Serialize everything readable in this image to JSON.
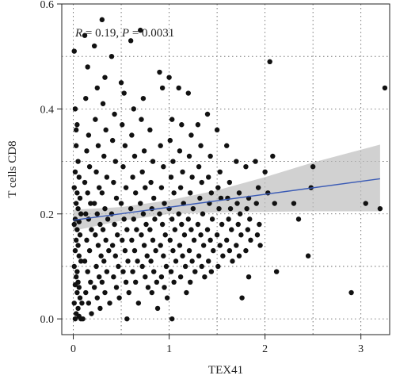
{
  "chart_data": {
    "type": "scatter",
    "title": "",
    "xlabel": "TEX41",
    "ylabel": "T cells CD8",
    "xlim": [
      -0.12,
      3.3
    ],
    "ylim": [
      -0.03,
      0.6
    ],
    "xticks": [
      0,
      1,
      2,
      3
    ],
    "yticks": [
      0.0,
      0.2,
      0.4,
      0.6
    ],
    "ytick_labels": [
      "0.0",
      "0.2",
      "0.4",
      "0.6"
    ],
    "grid": true,
    "annotation": {
      "r_symbol": "R",
      "r_value": " = 0.19, ",
      "p_symbol": "P",
      "p_value": " = 0.0031"
    },
    "fit": {
      "slope": 0.0247,
      "intercept": 0.188,
      "band": [
        {
          "x": 0.0,
          "lower": 0.168,
          "upper": 0.208
        },
        {
          "x": 0.5,
          "lower": 0.187,
          "upper": 0.213
        },
        {
          "x": 1.0,
          "lower": 0.2,
          "upper": 0.226
        },
        {
          "x": 1.5,
          "lower": 0.203,
          "upper": 0.245
        },
        {
          "x": 2.0,
          "lower": 0.204,
          "upper": 0.27
        },
        {
          "x": 2.5,
          "lower": 0.205,
          "upper": 0.298
        },
        {
          "x": 3.2,
          "lower": 0.205,
          "upper": 0.332
        }
      ]
    },
    "points": [
      [
        0.01,
        0.51
      ],
      [
        0.02,
        0.4
      ],
      [
        0.03,
        0.36
      ],
      [
        0.04,
        0.37
      ],
      [
        0.03,
        0.33
      ],
      [
        0.05,
        0.3
      ],
      [
        0.02,
        0.28
      ],
      [
        0.06,
        0.27
      ],
      [
        0.01,
        0.25
      ],
      [
        0.04,
        0.24
      ],
      [
        0.07,
        0.23
      ],
      [
        0.03,
        0.22
      ],
      [
        0.05,
        0.21
      ],
      [
        0.08,
        0.2
      ],
      [
        0.02,
        0.19
      ],
      [
        0.06,
        0.185
      ],
      [
        0.01,
        0.18
      ],
      [
        0.04,
        0.17
      ],
      [
        0.07,
        0.16
      ],
      [
        0.03,
        0.15
      ],
      [
        0.05,
        0.14
      ],
      [
        0.02,
        0.13
      ],
      [
        0.06,
        0.12
      ],
      [
        0.08,
        0.11
      ],
      [
        0.01,
        0.1
      ],
      [
        0.04,
        0.09
      ],
      [
        0.03,
        0.08
      ],
      [
        0.05,
        0.07
      ],
      [
        0.02,
        0.065
      ],
      [
        0.06,
        0.06
      ],
      [
        0.04,
        0.05
      ],
      [
        0.07,
        0.04
      ],
      [
        0.01,
        0.03
      ],
      [
        0.05,
        0.02
      ],
      [
        0.03,
        0.01
      ],
      [
        0.06,
        0.005
      ],
      [
        0.08,
        0.0
      ],
      [
        0.02,
        0.0
      ],
      [
        0.1,
        0.0
      ],
      [
        0.09,
        0.03
      ],
      [
        0.12,
        0.54
      ],
      [
        0.15,
        0.48
      ],
      [
        0.13,
        0.42
      ],
      [
        0.16,
        0.35
      ],
      [
        0.14,
        0.32
      ],
      [
        0.17,
        0.29
      ],
      [
        0.12,
        0.26
      ],
      [
        0.15,
        0.24
      ],
      [
        0.18,
        0.22
      ],
      [
        0.13,
        0.2
      ],
      [
        0.16,
        0.19
      ],
      [
        0.19,
        0.17
      ],
      [
        0.14,
        0.15
      ],
      [
        0.17,
        0.13
      ],
      [
        0.12,
        0.11
      ],
      [
        0.15,
        0.09
      ],
      [
        0.18,
        0.07
      ],
      [
        0.13,
        0.05
      ],
      [
        0.16,
        0.03
      ],
      [
        0.19,
        0.01
      ],
      [
        0.22,
        0.52
      ],
      [
        0.25,
        0.44
      ],
      [
        0.23,
        0.38
      ],
      [
        0.26,
        0.33
      ],
      [
        0.24,
        0.28
      ],
      [
        0.27,
        0.25
      ],
      [
        0.22,
        0.22
      ],
      [
        0.25,
        0.2
      ],
      [
        0.28,
        0.18
      ],
      [
        0.23,
        0.16
      ],
      [
        0.26,
        0.14
      ],
      [
        0.29,
        0.12
      ],
      [
        0.24,
        0.1
      ],
      [
        0.27,
        0.08
      ],
      [
        0.22,
        0.06
      ],
      [
        0.25,
        0.04
      ],
      [
        0.28,
        0.02
      ],
      [
        0.3,
        0.57
      ],
      [
        0.33,
        0.46
      ],
      [
        0.31,
        0.41
      ],
      [
        0.34,
        0.36
      ],
      [
        0.32,
        0.31
      ],
      [
        0.35,
        0.27
      ],
      [
        0.3,
        0.24
      ],
      [
        0.33,
        0.21
      ],
      [
        0.36,
        0.19
      ],
      [
        0.31,
        0.17
      ],
      [
        0.34,
        0.15
      ],
      [
        0.37,
        0.13
      ],
      [
        0.32,
        0.11
      ],
      [
        0.35,
        0.09
      ],
      [
        0.3,
        0.07
      ],
      [
        0.33,
        0.05
      ],
      [
        0.38,
        0.03
      ],
      [
        0.4,
        0.5
      ],
      [
        0.43,
        0.39
      ],
      [
        0.41,
        0.34
      ],
      [
        0.44,
        0.3
      ],
      [
        0.42,
        0.26
      ],
      [
        0.45,
        0.23
      ],
      [
        0.4,
        0.2
      ],
      [
        0.43,
        0.18
      ],
      [
        0.46,
        0.16
      ],
      [
        0.41,
        0.14
      ],
      [
        0.44,
        0.12
      ],
      [
        0.47,
        0.1
      ],
      [
        0.42,
        0.08
      ],
      [
        0.45,
        0.06
      ],
      [
        0.48,
        0.04
      ],
      [
        0.5,
        0.45
      ],
      [
        0.53,
        0.43
      ],
      [
        0.51,
        0.37
      ],
      [
        0.54,
        0.33
      ],
      [
        0.52,
        0.29
      ],
      [
        0.55,
        0.25
      ],
      [
        0.5,
        0.22
      ],
      [
        0.53,
        0.19
      ],
      [
        0.56,
        0.17
      ],
      [
        0.51,
        0.15
      ],
      [
        0.54,
        0.13
      ],
      [
        0.57,
        0.11
      ],
      [
        0.52,
        0.09
      ],
      [
        0.55,
        0.07
      ],
      [
        0.58,
        0.05
      ],
      [
        0.56,
        0.0
      ],
      [
        0.6,
        0.53
      ],
      [
        0.63,
        0.4
      ],
      [
        0.61,
        0.35
      ],
      [
        0.64,
        0.31
      ],
      [
        0.62,
        0.27
      ],
      [
        0.65,
        0.24
      ],
      [
        0.6,
        0.21
      ],
      [
        0.63,
        0.19
      ],
      [
        0.66,
        0.17
      ],
      [
        0.61,
        0.15
      ],
      [
        0.64,
        0.13
      ],
      [
        0.67,
        0.11
      ],
      [
        0.62,
        0.09
      ],
      [
        0.65,
        0.07
      ],
      [
        0.68,
        0.03
      ],
      [
        0.7,
        0.55
      ],
      [
        0.73,
        0.42
      ],
      [
        0.71,
        0.38
      ],
      [
        0.74,
        0.32
      ],
      [
        0.72,
        0.28
      ],
      [
        0.75,
        0.25
      ],
      [
        0.7,
        0.22
      ],
      [
        0.73,
        0.2
      ],
      [
        0.76,
        0.18
      ],
      [
        0.71,
        0.16
      ],
      [
        0.74,
        0.14
      ],
      [
        0.77,
        0.12
      ],
      [
        0.72,
        0.1
      ],
      [
        0.75,
        0.08
      ],
      [
        0.78,
        0.06
      ],
      [
        0.8,
        0.36
      ],
      [
        0.83,
        0.3
      ],
      [
        0.81,
        0.26
      ],
      [
        0.84,
        0.23
      ],
      [
        0.82,
        0.21
      ],
      [
        0.85,
        0.19
      ],
      [
        0.8,
        0.17
      ],
      [
        0.83,
        0.15
      ],
      [
        0.86,
        0.13
      ],
      [
        0.81,
        0.11
      ],
      [
        0.84,
        0.09
      ],
      [
        0.87,
        0.07
      ],
      [
        0.82,
        0.05
      ],
      [
        0.88,
        0.02
      ],
      [
        0.9,
        0.47
      ],
      [
        0.93,
        0.44
      ],
      [
        0.91,
        0.33
      ],
      [
        0.94,
        0.29
      ],
      [
        0.92,
        0.25
      ],
      [
        0.95,
        0.22
      ],
      [
        0.9,
        0.2
      ],
      [
        0.93,
        0.18
      ],
      [
        0.96,
        0.16
      ],
      [
        0.91,
        0.14
      ],
      [
        0.94,
        0.12
      ],
      [
        0.97,
        0.1
      ],
      [
        0.92,
        0.08
      ],
      [
        0.95,
        0.06
      ],
      [
        0.98,
        0.04
      ],
      [
        1.0,
        0.46
      ],
      [
        1.03,
        0.38
      ],
      [
        1.01,
        0.34
      ],
      [
        1.04,
        0.3
      ],
      [
        1.02,
        0.27
      ],
      [
        1.05,
        0.24
      ],
      [
        1.0,
        0.21
      ],
      [
        1.03,
        0.19
      ],
      [
        1.06,
        0.17
      ],
      [
        1.01,
        0.15
      ],
      [
        1.04,
        0.13
      ],
      [
        1.07,
        0.11
      ],
      [
        1.02,
        0.09
      ],
      [
        1.05,
        0.07
      ],
      [
        1.03,
        0.0
      ],
      [
        1.1,
        0.44
      ],
      [
        1.13,
        0.37
      ],
      [
        1.11,
        0.32
      ],
      [
        1.14,
        0.28
      ],
      [
        1.12,
        0.25
      ],
      [
        1.15,
        0.22
      ],
      [
        1.1,
        0.2
      ],
      [
        1.13,
        0.18
      ],
      [
        1.16,
        0.16
      ],
      [
        1.11,
        0.14
      ],
      [
        1.14,
        0.12
      ],
      [
        1.17,
        0.1
      ],
      [
        1.12,
        0.08
      ],
      [
        1.18,
        0.05
      ],
      [
        1.2,
        0.43
      ],
      [
        1.23,
        0.35
      ],
      [
        1.21,
        0.31
      ],
      [
        1.24,
        0.27
      ],
      [
        1.22,
        0.24
      ],
      [
        1.25,
        0.21
      ],
      [
        1.2,
        0.19
      ],
      [
        1.23,
        0.17
      ],
      [
        1.26,
        0.15
      ],
      [
        1.21,
        0.13
      ],
      [
        1.24,
        0.11
      ],
      [
        1.27,
        0.09
      ],
      [
        1.22,
        0.07
      ],
      [
        1.3,
        0.37
      ],
      [
        1.33,
        0.33
      ],
      [
        1.31,
        0.29
      ],
      [
        1.34,
        0.26
      ],
      [
        1.32,
        0.23
      ],
      [
        1.35,
        0.2
      ],
      [
        1.3,
        0.18
      ],
      [
        1.33,
        0.16
      ],
      [
        1.36,
        0.14
      ],
      [
        1.31,
        0.12
      ],
      [
        1.34,
        0.1
      ],
      [
        1.37,
        0.08
      ],
      [
        1.4,
        0.39
      ],
      [
        1.43,
        0.31
      ],
      [
        1.41,
        0.27
      ],
      [
        1.44,
        0.24
      ],
      [
        1.42,
        0.22
      ],
      [
        1.45,
        0.19
      ],
      [
        1.4,
        0.17
      ],
      [
        1.43,
        0.15
      ],
      [
        1.46,
        0.13
      ],
      [
        1.41,
        0.11
      ],
      [
        1.44,
        0.09
      ],
      [
        1.5,
        0.36
      ],
      [
        1.53,
        0.28
      ],
      [
        1.51,
        0.25
      ],
      [
        1.54,
        0.23
      ],
      [
        1.52,
        0.21
      ],
      [
        1.55,
        0.18
      ],
      [
        1.5,
        0.16
      ],
      [
        1.53,
        0.14
      ],
      [
        1.56,
        0.12
      ],
      [
        1.51,
        0.1
      ],
      [
        1.6,
        0.33
      ],
      [
        1.63,
        0.26
      ],
      [
        1.61,
        0.23
      ],
      [
        1.64,
        0.21
      ],
      [
        1.62,
        0.19
      ],
      [
        1.65,
        0.17
      ],
      [
        1.6,
        0.15
      ],
      [
        1.63,
        0.13
      ],
      [
        1.66,
        0.11
      ],
      [
        1.7,
        0.3
      ],
      [
        1.73,
        0.24
      ],
      [
        1.71,
        0.22
      ],
      [
        1.74,
        0.2
      ],
      [
        1.72,
        0.18
      ],
      [
        1.75,
        0.16
      ],
      [
        1.7,
        0.14
      ],
      [
        1.73,
        0.12
      ],
      [
        1.76,
        0.04
      ],
      [
        1.8,
        0.29
      ],
      [
        1.83,
        0.23
      ],
      [
        1.81,
        0.21
      ],
      [
        1.84,
        0.19
      ],
      [
        1.82,
        0.17
      ],
      [
        1.85,
        0.15
      ],
      [
        1.8,
        0.13
      ],
      [
        1.83,
        0.08
      ],
      [
        1.9,
        0.3
      ],
      [
        1.93,
        0.25
      ],
      [
        1.91,
        0.22
      ],
      [
        1.94,
        0.18
      ],
      [
        1.92,
        0.16
      ],
      [
        1.95,
        0.14
      ],
      [
        2.0,
        0.28
      ],
      [
        2.05,
        0.49
      ],
      [
        2.03,
        0.24
      ],
      [
        2.08,
        0.31
      ],
      [
        2.1,
        0.22
      ],
      [
        2.12,
        0.09
      ],
      [
        2.3,
        0.22
      ],
      [
        2.35,
        0.19
      ],
      [
        2.45,
        0.12
      ],
      [
        2.5,
        0.29
      ],
      [
        2.48,
        0.25
      ],
      [
        2.9,
        0.05
      ],
      [
        3.05,
        0.22
      ],
      [
        3.2,
        0.21
      ],
      [
        3.25,
        0.44
      ]
    ]
  }
}
